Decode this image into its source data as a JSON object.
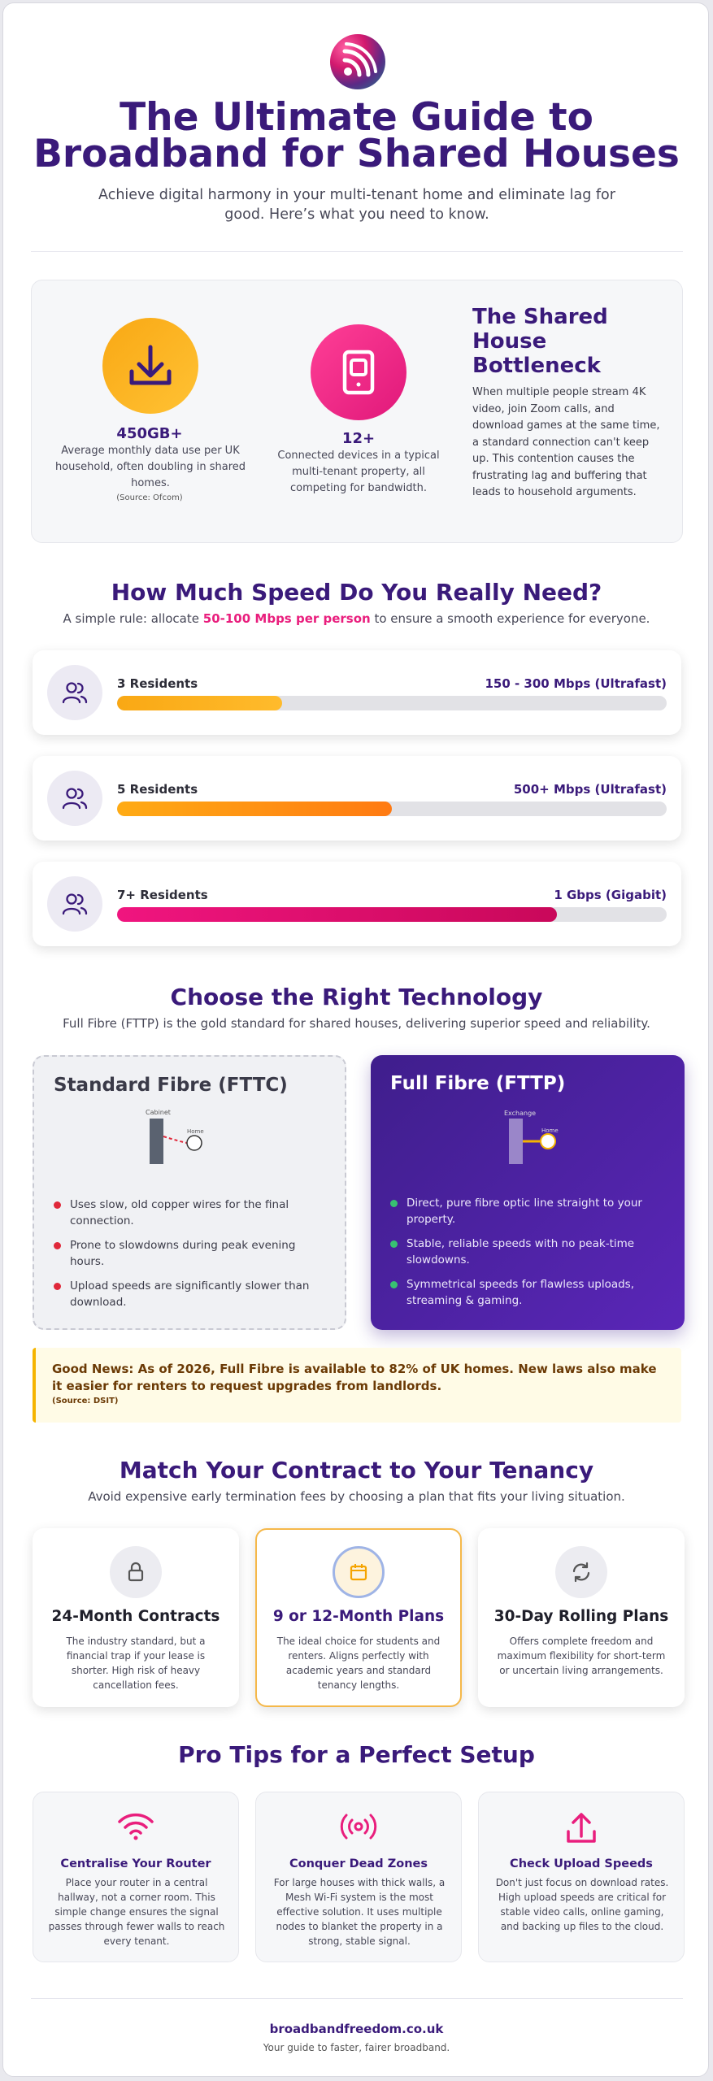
{
  "header": {
    "title_line1": "The Ultimate Guide to",
    "title_line2": "Broadband for Shared Houses",
    "subtitle": "Achieve digital harmony in your multi-tenant home and eliminate lag for good. Here’s what you need to know."
  },
  "stats": [
    {
      "value": "450GB+",
      "description": "Average monthly data use per UK household, often doubling in shared homes.",
      "source": "(Source: Ofcom)",
      "icon": "download-icon",
      "color": "#f9a814"
    },
    {
      "value": "12+",
      "description": "Connected devices in a typical multi-tenant property, all competing for bandwidth.",
      "icon": "tablet-icon",
      "color": "#ef2c8c"
    }
  ],
  "bottleneck": {
    "title": "The Shared House Bottleneck",
    "body": "When multiple people stream 4K video, join Zoom calls, and download games at the same time, a standard connection can't keep up. This contention causes the frustrating lag and buffering that leads to household arguments."
  },
  "speed": {
    "title": "How Much Speed Do You Really Need?",
    "subtitle_pre": "A simple rule: allocate ",
    "subtitle_highlight": "50-100 Mbps per person",
    "subtitle_post": " to ensure a smooth experience for everyone.",
    "rows": [
      {
        "label": "3 Residents",
        "speed": "150 - 300 Mbps (Ultrafast)",
        "level": 0.3
      },
      {
        "label": "5 Residents",
        "speed": "500+ Mbps (Ultrafast)",
        "level": 0.5
      },
      {
        "label": "7+ Residents",
        "speed": "1 Gbps (Gigabit)",
        "level": 0.8
      }
    ]
  },
  "technology": {
    "title": "Choose the Right Technology",
    "subtitle": "Full Fibre (FTTP) is the gold standard for shared houses, delivering superior speed and reliability.",
    "standard": {
      "title": "Standard Fibre (FTTC)",
      "diagram_from": "Cabinet",
      "diagram_to": "Home",
      "points": [
        "Uses slow, old copper wires for the final connection.",
        "Prone to slowdowns during peak evening hours.",
        "Upload speeds are significantly slower than download."
      ]
    },
    "full": {
      "title": "Full Fibre (FTTP)",
      "diagram_from": "Exchange",
      "diagram_to": "Home",
      "points": [
        "Direct, pure fibre optic line straight to your property.",
        "Stable, reliable speeds with no peak-time slowdowns.",
        "Symmetrical speeds for flawless uploads, streaming & gaming."
      ]
    }
  },
  "good_news": {
    "text": "Good News: As of 2026, Full Fibre is available to 82% of UK homes. New laws also make it easier for renters to request upgrades from landlords.",
    "source": "(Source: DSIT)"
  },
  "contracts": {
    "title": "Match Your Contract to Your Tenancy",
    "subtitle": "Avoid expensive early termination fees by choosing a plan that fits your living situation.",
    "items": [
      {
        "title": "24-Month Contracts",
        "description": "The industry standard, but a financial trap if your lease is shorter. High risk of heavy cancellation fees.",
        "icon": "lock-icon"
      },
      {
        "title": "9 or 12-Month Plans",
        "description": "The ideal choice for students and renters. Aligns perfectly with academic years and standard tenancy lengths.",
        "icon": "calendar-icon"
      },
      {
        "title": "30-Day Rolling Plans",
        "description": "Offers complete freedom and maximum flexibility for short-term or uncertain living arrangements.",
        "icon": "refresh-icon"
      }
    ]
  },
  "tips": {
    "title": "Pro Tips for a Perfect Setup",
    "items": [
      {
        "title": "Centralise Your Router",
        "description": "Place your router in a central hallway, not a corner room. This simple change ensures the signal passes through fewer walls to reach every tenant.",
        "icon": "wifi-icon"
      },
      {
        "title": "Conquer Dead Zones",
        "description": "For large houses with thick walls, a Mesh Wi-Fi system is the most effective solution. It uses multiple nodes to blanket the property in a strong, stable signal.",
        "icon": "broadcast-icon"
      },
      {
        "title": "Check Upload Speeds",
        "description": "Don't just focus on download rates. High upload speeds are critical for stable video calls, online gaming, and backing up files to the cloud.",
        "icon": "upload-icon"
      }
    ]
  },
  "footer": {
    "url": "broadbandfreedom.co.uk",
    "tagline": "Your guide to faster, fairer broadband."
  },
  "colors": {
    "primary": "#3a1a7a",
    "accent_pink": "#e91e7d",
    "accent_orange": "#f9a814"
  }
}
